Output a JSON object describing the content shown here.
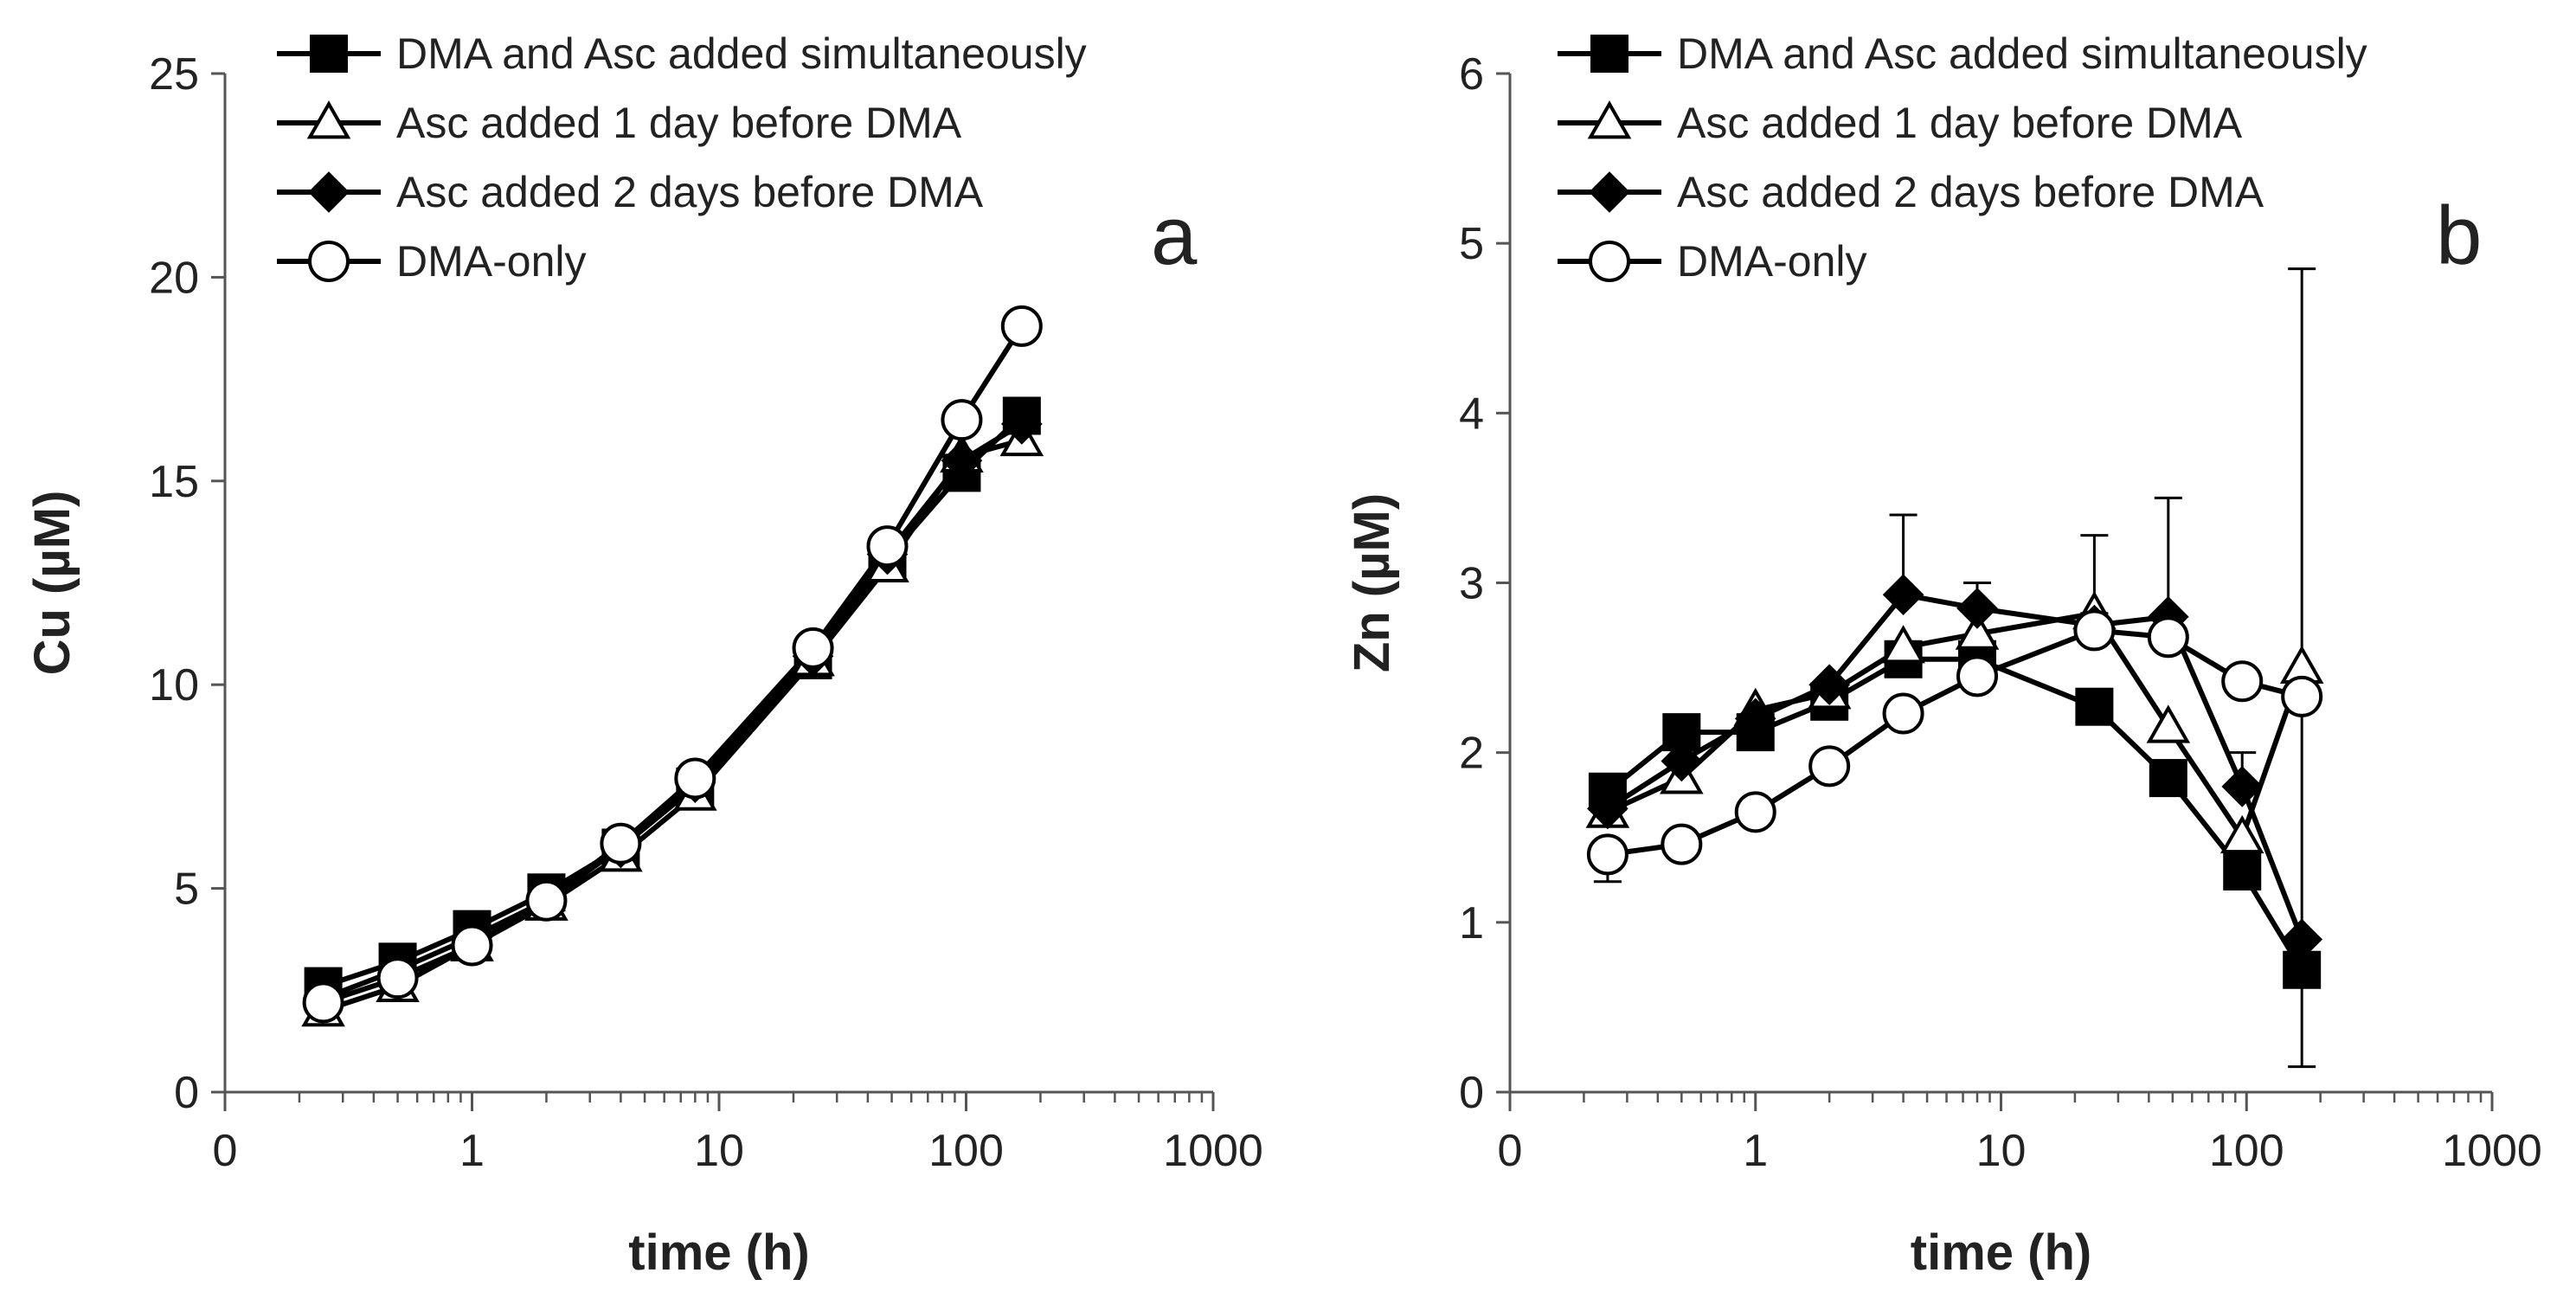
{
  "figure": {
    "legend": [
      {
        "key": "sim",
        "label": "DMA and Asc added simultaneously",
        "marker": "square-filled"
      },
      {
        "key": "day1",
        "label": "Asc added 1 day before DMA",
        "marker": "triangle-open"
      },
      {
        "key": "day2",
        "label": "Asc added 2 days before DMA",
        "marker": "diamond-filled"
      },
      {
        "key": "dma",
        "label": "DMA-only",
        "marker": "circle-open"
      }
    ],
    "colors": {
      "line": "#000000",
      "marker_fill": "#000000",
      "open_fill": "#ffffff",
      "axis": "#555555",
      "text": "#222222"
    }
  },
  "chart_data": [
    {
      "type": "line",
      "panel": "a",
      "ylabel": "Cu (µM)",
      "xlabel": "time (h)",
      "xscale": "log",
      "xticks": [
        0.1,
        1,
        10,
        100,
        1000
      ],
      "xtick_labels": [
        "0",
        "1",
        "10",
        "100",
        "1000"
      ],
      "xlim": [
        0.1,
        1000
      ],
      "ylim": [
        0,
        25
      ],
      "yticks": [
        0,
        5,
        10,
        15,
        20,
        25
      ],
      "x": [
        0.25,
        0.5,
        1,
        2,
        4,
        8,
        24,
        48,
        96,
        168
      ],
      "series": [
        {
          "key": "sim",
          "name": "DMA and Asc added simultaneously",
          "values": [
            2.6,
            3.2,
            4.0,
            4.9,
            6.0,
            7.5,
            10.6,
            13.1,
            15.2,
            16.6
          ]
        },
        {
          "key": "day1",
          "name": "Asc added 1 day before DMA",
          "values": [
            2.0,
            2.6,
            3.6,
            4.6,
            5.8,
            7.3,
            10.6,
            12.9,
            15.6,
            16.0
          ]
        },
        {
          "key": "day2",
          "name": "Asc added 2 days before DMA",
          "values": [
            2.3,
            3.0,
            3.8,
            4.7,
            6.0,
            7.6,
            10.7,
            13.2,
            15.5,
            16.4
          ]
        },
        {
          "key": "dma",
          "name": "DMA-only",
          "values": [
            2.2,
            2.8,
            3.6,
            4.7,
            6.1,
            7.7,
            10.9,
            13.4,
            16.5,
            18.8
          ]
        }
      ],
      "error_bars": []
    },
    {
      "type": "line",
      "panel": "b",
      "ylabel": "Zn (µM)",
      "xlabel": "time (h)",
      "xscale": "log",
      "xticks": [
        0.1,
        1,
        10,
        100,
        1000
      ],
      "xtick_labels": [
        "0",
        "1",
        "10",
        "100",
        "1000"
      ],
      "xlim": [
        0.1,
        1000
      ],
      "ylim": [
        0,
        6
      ],
      "yticks": [
        0,
        1,
        2,
        3,
        4,
        5,
        6
      ],
      "x": [
        0.25,
        0.5,
        1,
        2,
        4,
        8,
        24,
        48,
        96,
        168
      ],
      "series": [
        {
          "key": "sim",
          "name": "DMA and Asc added simultaneously",
          "values": [
            1.77,
            2.12,
            2.12,
            2.3,
            2.55,
            2.55,
            2.27,
            1.85,
            1.3,
            0.72
          ]
        },
        {
          "key": "day1",
          "name": "Asc added 1 day before DMA",
          "values": [
            1.65,
            1.85,
            2.25,
            2.35,
            2.62,
            2.7,
            2.82,
            2.15,
            1.5,
            2.5
          ]
        },
        {
          "key": "day2",
          "name": "Asc added 2 days before DMA",
          "values": [
            1.67,
            1.95,
            2.2,
            2.4,
            2.93,
            2.85,
            2.75,
            2.8,
            1.8,
            0.9
          ]
        },
        {
          "key": "dma",
          "name": "DMA-only",
          "values": [
            1.4,
            1.46,
            1.65,
            1.92,
            2.23,
            2.45,
            2.72,
            2.68,
            2.42,
            2.33
          ]
        }
      ],
      "error_bars": [
        {
          "x": 0.25,
          "low": 1.24,
          "high": 1.4
        },
        {
          "x": 4,
          "low": 2.93,
          "high": 3.4
        },
        {
          "x": 8,
          "low": 2.85,
          "high": 3.0
        },
        {
          "x": 24,
          "low": 2.82,
          "high": 3.28
        },
        {
          "x": 48,
          "low": 2.8,
          "high": 3.5
        },
        {
          "x": 96,
          "low": 1.8,
          "high": 2.0
        },
        {
          "x": 168,
          "low": 0.15,
          "high": 4.85
        }
      ]
    }
  ]
}
